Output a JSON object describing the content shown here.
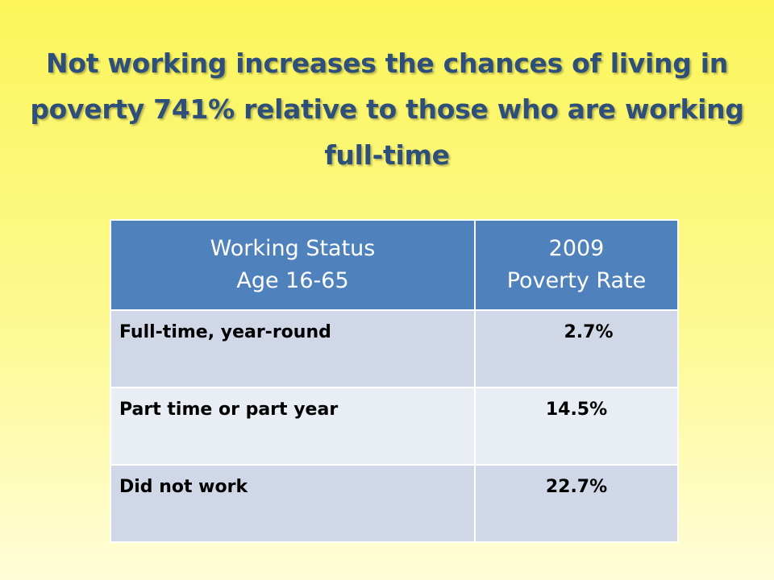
{
  "title": "Not working increases the chances of living in poverty 741% relative to those who are working full-time",
  "table": {
    "headers": [
      {
        "line1": "Working Status",
        "line2": "Age 16-65"
      },
      {
        "line1": "2009",
        "line2": "Poverty Rate"
      }
    ],
    "rows": [
      {
        "status": "Full-time, year-round",
        "rate": "2.7%"
      },
      {
        "status": "Part time or part year",
        "rate": "14.5%"
      },
      {
        "status": "Did not work",
        "rate": "22.7%"
      }
    ]
  },
  "colors": {
    "title": "#2d4f7a",
    "header_bg": "#4f81bd",
    "row_odd": "#d0d8e8",
    "row_even": "#e9edf4",
    "background_top": "#fbf55a",
    "background_bottom": "#fffdd8"
  }
}
